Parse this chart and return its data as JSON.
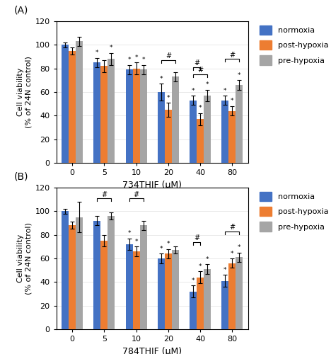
{
  "panel_A": {
    "title": "(A)",
    "xlabel": "734THIF (μM)",
    "ylabel": "Cell viability\n(% of 24N control)",
    "categories": [
      0,
      5,
      10,
      20,
      40,
      80
    ],
    "normoxia": [
      100,
      85,
      79,
      60,
      53,
      53
    ],
    "post_hypoxia": [
      95,
      82,
      80,
      45,
      37,
      44
    ],
    "pre_hypoxia": [
      103,
      88,
      79,
      73,
      57,
      66
    ],
    "normoxia_err": [
      2,
      4,
      4,
      7,
      4,
      4
    ],
    "post_hypoxia_err": [
      3,
      5,
      5,
      6,
      5,
      4
    ],
    "pre_hypoxia_err": [
      4,
      5,
      4,
      4,
      5,
      4
    ],
    "star_normoxia": [
      false,
      true,
      true,
      true,
      true,
      true
    ],
    "star_post": [
      false,
      false,
      true,
      true,
      true,
      true
    ],
    "star_pre": [
      false,
      true,
      true,
      false,
      true,
      true
    ]
  },
  "panel_B": {
    "title": "(B)",
    "xlabel": "784THIF (μM)",
    "ylabel": "Cell viability\n(% of 24N control)",
    "categories": [
      0,
      5,
      10,
      20,
      40,
      80
    ],
    "normoxia": [
      100,
      92,
      72,
      60,
      32,
      41
    ],
    "post_hypoxia": [
      88,
      75,
      66,
      64,
      44,
      56
    ],
    "pre_hypoxia": [
      95,
      96,
      88,
      67,
      51,
      61
    ],
    "normoxia_err": [
      2,
      4,
      5,
      4,
      5,
      5
    ],
    "post_hypoxia_err": [
      3,
      5,
      4,
      4,
      5,
      4
    ],
    "pre_hypoxia_err": [
      13,
      3,
      4,
      3,
      4,
      4
    ],
    "star_normoxia": [
      false,
      false,
      true,
      true,
      true,
      true
    ],
    "star_post": [
      false,
      false,
      true,
      true,
      true,
      true
    ],
    "star_pre": [
      false,
      false,
      false,
      false,
      true,
      true
    ]
  },
  "colors": {
    "normoxia": "#4472C4",
    "post_hypoxia": "#ED7D31",
    "pre_hypoxia": "#A5A5A5"
  },
  "ylim": [
    0,
    120
  ],
  "yticks": [
    0,
    20,
    40,
    60,
    80,
    100,
    120
  ],
  "bar_width": 0.22,
  "legend_labels": [
    "normoxia",
    "post-hypoxia",
    "pre-hypoxia"
  ]
}
